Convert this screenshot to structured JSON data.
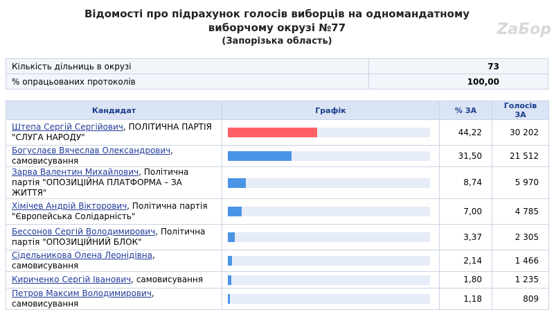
{
  "header": {
    "title": "Відомості про підрахунок голосів виборців на одномандатному виборчому окрузі №77",
    "subtitle": "(Запорізька область)",
    "logo": "ZaБор"
  },
  "summary": {
    "rows": [
      [
        "Кількість дільниць в окрузі",
        "73"
      ],
      [
        "% опрацьованих протоколів",
        "100,00"
      ]
    ]
  },
  "table": {
    "columns": [
      "Кандидат",
      "Графік",
      "% ЗА",
      "Голосів ЗА"
    ],
    "xlim": [
      0,
      100
    ],
    "rows": [
      {
        "candidate": "Штепа Сергій Сергійович",
        "party": ", ПОЛІТИЧНА ПАРТІЯ \"СЛУГА НАРОДУ\"",
        "percent": 44.22,
        "percent_label": "44,22",
        "votes": 30202,
        "votes_label": "30 202",
        "color": "#ff6166"
      },
      {
        "candidate": "Богуслаєв Вячеслав Олександрович",
        "party": ", самовисування",
        "percent": 31.5,
        "percent_label": "31,50",
        "votes": 21512,
        "votes_label": "21 512",
        "color": "#4a94e6"
      },
      {
        "candidate": "Зарва Валентин Михайлович",
        "party": ", Політична партія \"ОПОЗИЦІЙНА ПЛАТФОРМА – ЗА ЖИТТЯ\"",
        "percent": 8.74,
        "percent_label": "8,74",
        "votes": 5970,
        "votes_label": "5 970",
        "color": "#4a94e6"
      },
      {
        "candidate": "Хімічев Андрій Вікторович",
        "party": ", Політична партія \"Європейська Солідарність\"",
        "percent": 7.0,
        "percent_label": "7,00",
        "votes": 4785,
        "votes_label": "4 785",
        "color": "#4a94e6"
      },
      {
        "candidate": "Бессонов Сергій Володимирович",
        "party": ", Політична партія \"ОПОЗИЦІЙНИЙ БЛОК\"",
        "percent": 3.37,
        "percent_label": "3,37",
        "votes": 2305,
        "votes_label": "2 305",
        "color": "#4a94e6"
      },
      {
        "candidate": "Сідельникова Олена Леонідівна",
        "party": ", самовисування",
        "percent": 2.14,
        "percent_label": "2,14",
        "votes": 1466,
        "votes_label": "1 466",
        "color": "#4a94e6"
      },
      {
        "candidate": "Кириченко Сергій Іванович",
        "party": ", самовисування",
        "percent": 1.8,
        "percent_label": "1,80",
        "votes": 1235,
        "votes_label": "1 235",
        "color": "#4a94e6"
      },
      {
        "candidate": "Петров Максим Володимирович",
        "party": ", самовисування",
        "percent": 1.18,
        "percent_label": "1,18",
        "votes": 809,
        "votes_label": "809",
        "color": "#4a94e6"
      }
    ]
  }
}
